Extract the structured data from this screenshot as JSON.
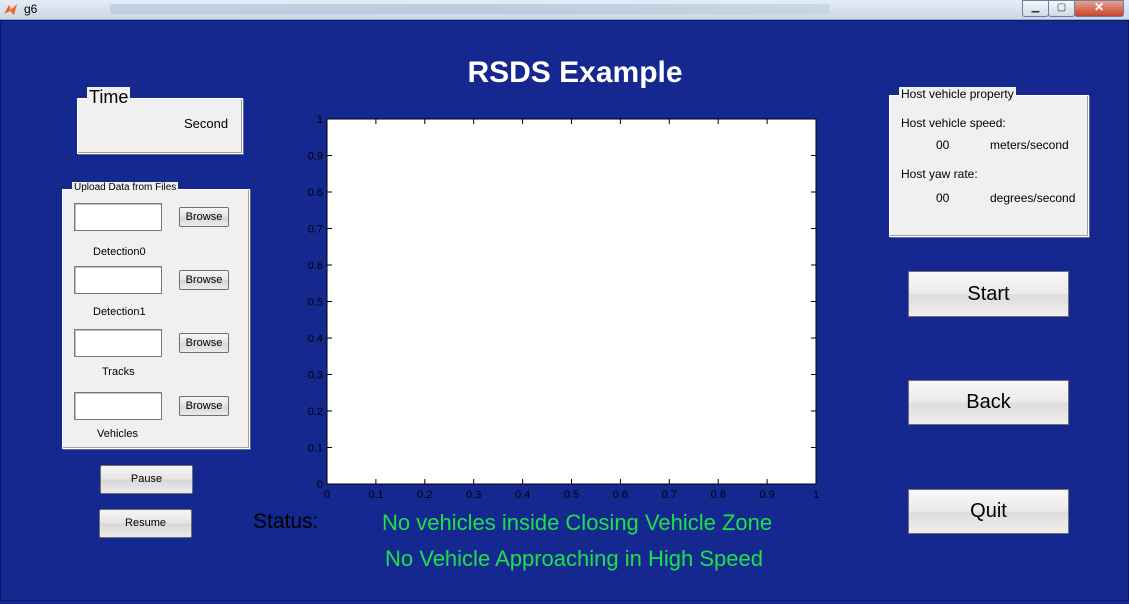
{
  "window": {
    "title": "g6"
  },
  "heading": "RSDS Example",
  "time_panel": {
    "title": "Time",
    "unit": "Second"
  },
  "upload_panel": {
    "title": "Upload Data from Files",
    "rows": [
      {
        "label": "Detection0",
        "value": "",
        "button": "Browse"
      },
      {
        "label": "Detection1",
        "value": "",
        "button": "Browse"
      },
      {
        "label": "Tracks",
        "value": "",
        "button": "Browse"
      },
      {
        "label": "Vehicles",
        "value": "",
        "button": "Browse"
      }
    ]
  },
  "controls": {
    "pause": "Pause",
    "resume": "Resume"
  },
  "host_panel": {
    "title": "Host vehicle property",
    "speed_label": "Host vehicle speed:",
    "speed_value": "00",
    "speed_unit": "meters/second",
    "yaw_label": "Host yaw rate:",
    "yaw_value": "00",
    "yaw_unit": "degrees/second"
  },
  "actions": {
    "start": "Start",
    "back": "Back",
    "quit": "Quit"
  },
  "status": {
    "label": "Status:",
    "line1": "No vehicles inside Closing Vehicle Zone",
    "line2": "No Vehicle Approaching in High Speed"
  },
  "chart_data": {
    "type": "scatter",
    "xlim": [
      0,
      1
    ],
    "ylim": [
      0,
      1
    ],
    "x_ticks": [
      "0",
      "0.1",
      "0.2",
      "0.3",
      "0.4",
      "0.5",
      "0.6",
      "0.7",
      "0.8",
      "0.9",
      "1"
    ],
    "y_ticks": [
      "0",
      "0.1",
      "0.2",
      "0.3",
      "0.4",
      "0.5",
      "0.6",
      "0.7",
      "0.8",
      "0.9",
      "1"
    ],
    "series": [],
    "grid": false
  },
  "colors": {
    "background": "#15288f",
    "status_text": "#19e34a",
    "heading_text": "#ffffff"
  }
}
